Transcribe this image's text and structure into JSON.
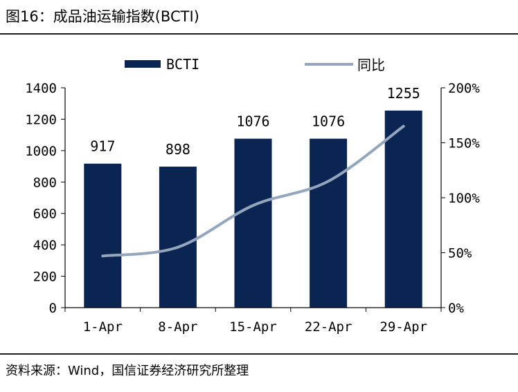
{
  "figure": {
    "title": "图16：成品油运输指数(BCTI)",
    "source": "资料来源：Wind，国信证券经济研究所整理"
  },
  "colors": {
    "bar": "#0b2552",
    "line": "#93a6bd",
    "axis": "#000000"
  },
  "chart_data": {
    "type": "bar",
    "title": "",
    "categories": [
      "1-Apr",
      "8-Apr",
      "15-Apr",
      "22-Apr",
      "29-Apr"
    ],
    "series": [
      {
        "name": "BCTI",
        "type": "bar",
        "axis": "left",
        "values": [
          917,
          898,
          1076,
          1076,
          1255
        ]
      },
      {
        "name": "同比",
        "type": "line",
        "axis": "right",
        "values": [
          0.47,
          0.55,
          0.93,
          1.15,
          1.65
        ]
      }
    ],
    "y_left": {
      "min": 0,
      "max": 1400,
      "step": 200,
      "ticks": [
        "0",
        "200",
        "400",
        "600",
        "800",
        "1000",
        "1200",
        "1400"
      ]
    },
    "y_right": {
      "min": 0,
      "max": 2,
      "step": 0.5,
      "ticks": [
        "0%",
        "50%",
        "100%",
        "150%",
        "200%"
      ]
    },
    "data_labels": [
      "917",
      "898",
      "1076",
      "1076",
      "1255"
    ],
    "legend": {
      "position": "top",
      "items": [
        "BCTI",
        "同比"
      ]
    },
    "grid": false
  }
}
